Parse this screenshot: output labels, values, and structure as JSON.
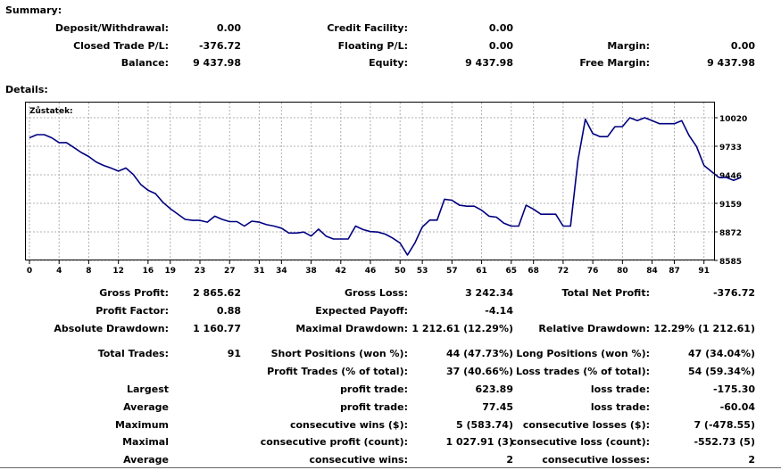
{
  "summary": {
    "title": "Summary:",
    "rows": [
      [
        {
          "label": "Deposit/Withdrawal:",
          "value": "0.00"
        },
        {
          "label": "Credit Facility:",
          "value": "0.00"
        },
        {
          "label": "",
          "value": ""
        }
      ],
      [
        {
          "label": "Closed Trade P/L:",
          "value": "-376.72"
        },
        {
          "label": "Floating P/L:",
          "value": "0.00"
        },
        {
          "label": "Margin:",
          "value": "0.00"
        }
      ],
      [
        {
          "label": "Balance:",
          "value": "9 437.98"
        },
        {
          "label": "Equity:",
          "value": "9 437.98"
        },
        {
          "label": "Free Margin:",
          "value": "9 437.98"
        }
      ]
    ]
  },
  "details": {
    "title": "Details:"
  },
  "chart_data": {
    "type": "line",
    "series_label": "Zůstatek:",
    "x_ticks": [
      "0",
      "4",
      "8",
      "12",
      "16",
      "19",
      "23",
      "27",
      "31",
      "34",
      "38",
      "42",
      "46",
      "50",
      "53",
      "57",
      "61",
      "65",
      "68",
      "72",
      "76",
      "80",
      "84",
      "87",
      "91"
    ],
    "y_ticks": [
      "10020",
      "9733",
      "9446",
      "9159",
      "8872",
      "8585"
    ],
    "ylim": [
      8585,
      10020
    ],
    "xlim": [
      0,
      92
    ],
    "line_color": "#000080",
    "grid": true,
    "values": [
      9818,
      9850,
      9850,
      9818,
      9770,
      9770,
      9720,
      9670,
      9630,
      9575,
      9540,
      9514,
      9483,
      9514,
      9450,
      9350,
      9290,
      9257,
      9170,
      9105,
      9051,
      8998,
      8988,
      8988,
      8970,
      9030,
      8998,
      8975,
      8975,
      8930,
      8980,
      8970,
      8945,
      8930,
      8910,
      8860,
      8860,
      8870,
      8830,
      8900,
      8830,
      8800,
      8800,
      8800,
      8930,
      8895,
      8875,
      8870,
      8850,
      8810,
      8760,
      8640,
      8760,
      8920,
      8990,
      8990,
      9200,
      9190,
      9140,
      9130,
      9130,
      9090,
      9030,
      9020,
      8960,
      8930,
      8930,
      9140,
      9100,
      9050,
      9050,
      9050,
      8930,
      8930,
      9590,
      10005,
      9860,
      9830,
      9830,
      9930,
      9930,
      10020,
      9990,
      10020,
      9990,
      9960,
      9960,
      9960,
      9990,
      9840,
      9730,
      9540,
      9480,
      9420,
      9420,
      9390,
      9420
    ]
  },
  "stats": {
    "row1": [
      {
        "label": "Gross Profit:",
        "value": "2 865.62"
      },
      {
        "label": "Gross Loss:",
        "value": "3 242.34"
      },
      {
        "label": "Total Net Profit:",
        "value": "-376.72"
      }
    ],
    "row2": [
      {
        "label": "Profit Factor:",
        "value": "0.88"
      },
      {
        "label": "Expected Payoff:",
        "value": "-4.14"
      },
      {
        "label": "",
        "value": ""
      }
    ],
    "row3": [
      {
        "label": "Absolute Drawdown:",
        "value": "1 160.77"
      },
      {
        "label": "Maximal Drawdown:",
        "value": "1 212.61 (12.29%)"
      },
      {
        "label": "Relative Drawdown:",
        "value": "12.29% (1 212.61)"
      }
    ],
    "trades": [
      {
        "c1": "Total Trades:",
        "v1": "91",
        "c2": "Short Positions (won %):",
        "v2": "44 (47.73%)",
        "c3": "Long Positions (won %):",
        "v3": "47 (34.04%)"
      },
      {
        "c1": "",
        "v1": "",
        "c2": "Profit Trades (% of total):",
        "v2": "37 (40.66%)",
        "c3": "Loss trades (% of total):",
        "v3": "54 (59.34%)"
      },
      {
        "c1": "Largest",
        "v1": "",
        "c2": "profit trade:",
        "v2": "623.89",
        "c3": "loss trade:",
        "v3": "-175.30"
      },
      {
        "c1": "Average",
        "v1": "",
        "c2": "profit trade:",
        "v2": "77.45",
        "c3": "loss trade:",
        "v3": "-60.04"
      },
      {
        "c1": "Maximum",
        "v1": "",
        "c2": "consecutive wins ($):",
        "v2": "5 (583.74)",
        "c3": "consecutive losses ($):",
        "v3": "7 (-478.55)"
      },
      {
        "c1": "Maximal",
        "v1": "",
        "c2": "consecutive profit (count):",
        "v2": "1 027.91 (3)",
        "c3": "consecutive loss (count):",
        "v3": "-552.73 (5)"
      },
      {
        "c1": "Average",
        "v1": "",
        "c2": "consecutive wins:",
        "v2": "2",
        "c3": "consecutive losses:",
        "v3": "2"
      }
    ]
  }
}
